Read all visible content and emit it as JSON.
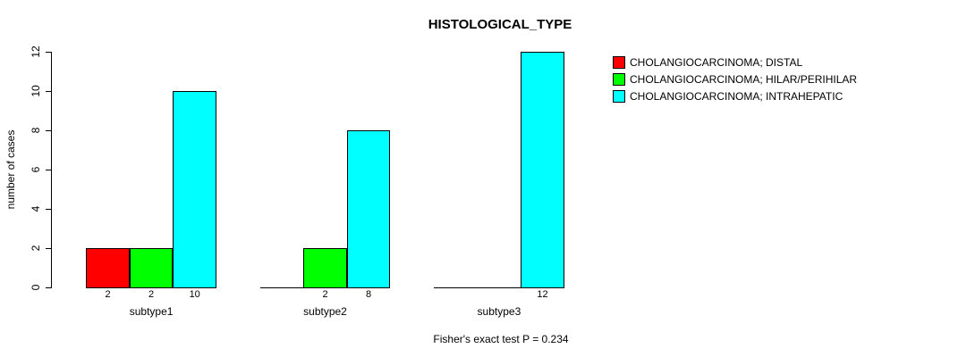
{
  "chart_data": {
    "type": "bar",
    "title": "HISTOLOGICAL_TYPE",
    "ylabel": "number of cases",
    "xlabel": "",
    "footer": "Fisher's exact test P = 0.234",
    "categories": [
      "subtype1",
      "subtype2",
      "subtype3"
    ],
    "series": [
      {
        "name": "CHOLANGIOCARCINOMA; DISTAL",
        "color": "#ff0000",
        "values": [
          2,
          0,
          0
        ]
      },
      {
        "name": "CHOLANGIOCARCINOMA; HILAR/PERIHILAR",
        "color": "#00ff00",
        "values": [
          2,
          2,
          0
        ]
      },
      {
        "name": "CHOLANGIOCARCINOMA; INTRAHEPATIC",
        "color": "#00ffff",
        "values": [
          10,
          8,
          12
        ]
      }
    ],
    "bar_value_labels": [
      [
        "2",
        "",
        ""
      ],
      [
        "2",
        "2",
        ""
      ],
      [
        "10",
        "8",
        "12"
      ]
    ],
    "yticks": [
      0,
      2,
      4,
      6,
      8,
      10,
      12
    ],
    "ylim": [
      0,
      12
    ],
    "grid": false,
    "legend_position": "top-right",
    "bar_border_color": "#000000",
    "background_color": "#ffffff"
  }
}
